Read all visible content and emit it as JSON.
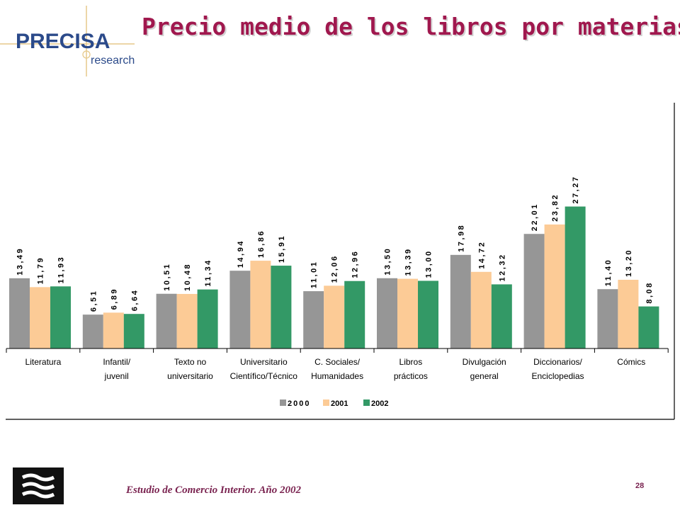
{
  "header": {
    "title": "Precio medio de los libros por materias",
    "logo_text_main": "PRECISA",
    "logo_text_sub": "research"
  },
  "footer": {
    "text": "Estudio de Comercio Interior. Año 2002",
    "page_number": "28"
  },
  "colors": {
    "title": "#a0184e",
    "logo_text": "#2b4a8a",
    "logo_accent": "#e6c98a",
    "series_2000": "#969696",
    "series_2001": "#fccb96",
    "series_2002": "#339966",
    "footer_logo": "#111111"
  },
  "chart_data": {
    "type": "bar",
    "categories": [
      [
        "Literatura"
      ],
      [
        "Infantil/",
        "juvenil"
      ],
      [
        "Texto no",
        "universitario"
      ],
      [
        "Universitario",
        "Científico/Técnico"
      ],
      [
        "C. Sociales/",
        "Humanidades"
      ],
      [
        "Libros",
        "prácticos"
      ],
      [
        "Divulgación",
        "general"
      ],
      [
        "Diccionarios/",
        "Enciclopedias"
      ],
      [
        "Cómics"
      ]
    ],
    "series": [
      {
        "name": "2000",
        "values": [
          13.49,
          6.51,
          10.51,
          14.94,
          11.01,
          13.5,
          17.98,
          22.01,
          11.4
        ],
        "labels": [
          "13,49",
          "6,51",
          "10,51",
          "14,94",
          "11,01",
          "13,50",
          "17,98",
          "22,01",
          "11,40"
        ]
      },
      {
        "name": "2001",
        "values": [
          11.79,
          6.89,
          10.48,
          16.86,
          12.06,
          13.39,
          14.72,
          23.82,
          13.2
        ],
        "labels": [
          "11,79",
          "6,89",
          "10,48",
          "16,86",
          "12,06",
          "13,39",
          "14,72",
          "23,82",
          "13,20"
        ]
      },
      {
        "name": "2002",
        "values": [
          11.93,
          6.64,
          11.34,
          15.91,
          12.96,
          13.0,
          12.32,
          27.27,
          8.08
        ],
        "labels": [
          "11,93",
          "6,64",
          "11,34",
          "15,91",
          "12,96",
          "13,00",
          "12,32",
          "27,27",
          "8,08"
        ]
      }
    ],
    "ylim": [
      0,
      30
    ],
    "grid": false,
    "legend": {
      "placement": "bottom-center",
      "entries": [
        "2000",
        "2001",
        "2002"
      ]
    }
  }
}
